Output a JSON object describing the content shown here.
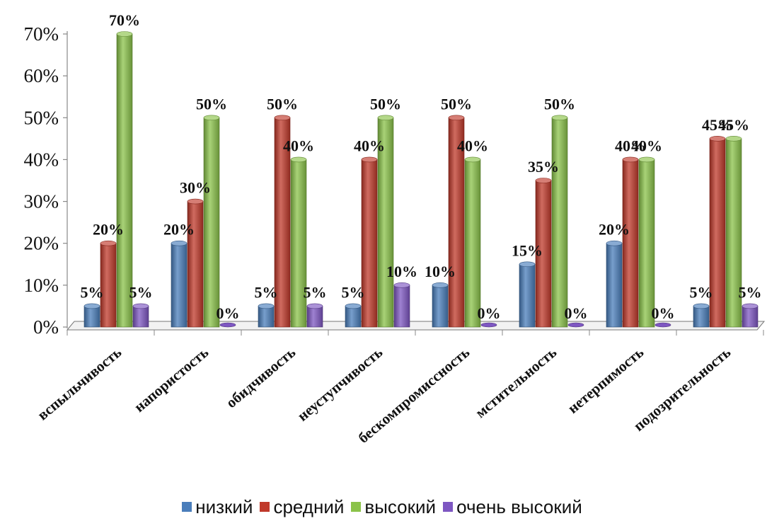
{
  "chart_data": {
    "type": "bar",
    "categories": [
      "вспыльчивость",
      "напористость",
      "обидчивость",
      "неуступчивость",
      "бескомпромиссность",
      "мстительность",
      "нетерпимость",
      "подозрительность"
    ],
    "series": [
      {
        "name": "низкий",
        "color": "#4a7ebb",
        "values": [
          5,
          20,
          5,
          5,
          10,
          15,
          20,
          5
        ]
      },
      {
        "name": "средний",
        "color": "#c0392b",
        "values": [
          20,
          30,
          50,
          40,
          50,
          35,
          40,
          45
        ]
      },
      {
        "name": "высокий",
        "color": "#8bc34a",
        "values": [
          70,
          50,
          40,
          50,
          40,
          50,
          40,
          45
        ]
      },
      {
        "name": "очень высокий",
        "color": "#7e57c2",
        "values": [
          5,
          0,
          5,
          10,
          0,
          0,
          0,
          5
        ]
      }
    ],
    "data_labels": [
      [
        "5%",
        "20%",
        "70%",
        "5%"
      ],
      [
        "20%",
        "30%",
        "50%",
        "0%"
      ],
      [
        "5%",
        "50%",
        "40%",
        "5%"
      ],
      [
        "5%",
        "40%",
        "50%",
        "10%"
      ],
      [
        "10%",
        "50%",
        "40%",
        "0%"
      ],
      [
        "15%",
        "35%",
        "50%",
        "0%"
      ],
      [
        "20%",
        "40%",
        "40%",
        "0%"
      ],
      [
        "5%",
        "45%",
        "45%",
        "5%"
      ]
    ],
    "y_ticks": [
      "0%",
      "10%",
      "20%",
      "30%",
      "40%",
      "50%",
      "60%",
      "70%"
    ],
    "ylim": [
      0,
      70
    ],
    "legend_position": "bottom",
    "grid": false,
    "style": "3d-cylinder"
  }
}
